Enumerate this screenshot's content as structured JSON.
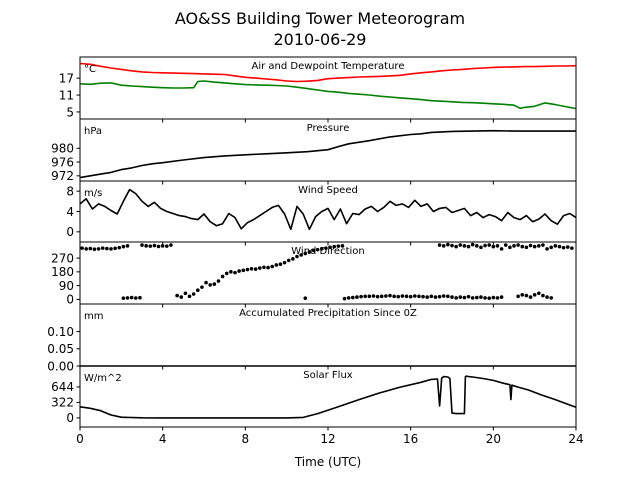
{
  "title": "AO&SS Building Tower Meteorogram",
  "subtitle": "2010-06-29",
  "colors": {
    "temperature": "#ff0000",
    "dewpoint": "#008000",
    "line": "#000000"
  },
  "chart_data": [
    {
      "type": "line",
      "title": "Air and Dewpoint Temperature",
      "unit_label": "°C",
      "xlim": [
        0,
        24
      ],
      "ylim": [
        2.5,
        24.5
      ],
      "yticks": [
        5,
        11,
        17
      ],
      "series": [
        {
          "x": [
            0,
            0.5,
            1,
            1.5,
            2,
            2.5,
            3,
            3.5,
            4,
            4.5,
            5,
            5.5,
            6,
            6.5,
            7,
            7.5,
            8,
            8.5,
            9,
            9.5,
            10,
            10.5,
            11,
            11.5,
            12,
            12.5,
            13,
            13.5,
            14,
            14.5,
            15,
            15.5,
            16,
            16.5,
            17,
            17.5,
            18,
            18.5,
            19,
            19.5,
            20,
            20.5,
            21,
            21.5,
            22,
            22.5,
            23,
            23.5,
            24
          ],
          "values": [
            22.2,
            21.9,
            21.2,
            20.6,
            20.1,
            19.6,
            19.2,
            19.0,
            18.9,
            18.8,
            18.7,
            18.6,
            18.5,
            18.4,
            18.3,
            17.8,
            17.3,
            17.0,
            16.7,
            16.4,
            16.0,
            15.8,
            15.9,
            16.2,
            16.8,
            17.0,
            17.2,
            17.4,
            17.5,
            17.6,
            17.8,
            18.0,
            18.5,
            18.9,
            19.2,
            19.6,
            19.9,
            20.1,
            20.4,
            20.6,
            20.8,
            20.9,
            21.0,
            21.1,
            21.1,
            21.2,
            21.3,
            21.3,
            21.4
          ]
        },
        {
          "x": [
            0,
            0.5,
            1,
            1.5,
            2,
            2.5,
            3,
            3.5,
            4,
            4.5,
            5,
            5.5,
            5.7,
            6,
            6.5,
            7,
            7.5,
            8,
            8.5,
            9,
            9.5,
            10,
            10.5,
            11,
            11.5,
            12,
            12.5,
            13,
            13.5,
            14,
            14.5,
            15,
            15.5,
            16,
            16.5,
            17,
            17.5,
            18,
            18.5,
            19,
            19.5,
            20,
            20.5,
            21,
            21.3,
            21.5,
            22,
            22.5,
            23,
            23.5,
            24
          ],
          "values": [
            15.0,
            14.8,
            15.2,
            15.3,
            14.5,
            14.2,
            14.0,
            13.8,
            13.6,
            13.5,
            13.5,
            13.6,
            15.8,
            16.0,
            15.6,
            15.3,
            15.0,
            14.7,
            14.6,
            14.5,
            14.4,
            14.2,
            13.8,
            13.3,
            12.8,
            12.3,
            12.0,
            11.6,
            11.3,
            11.0,
            10.6,
            10.3,
            10.0,
            9.7,
            9.4,
            9.0,
            8.8,
            8.6,
            8.4,
            8.3,
            8.1,
            7.9,
            7.7,
            7.4,
            6.3,
            6.6,
            7.0,
            8.2,
            7.6,
            6.9,
            6.2
          ]
        }
      ]
    },
    {
      "type": "line",
      "title": "Pressure",
      "unit_label": "hPa",
      "xlim": [
        0,
        24
      ],
      "ylim": [
        970.5,
        988.5
      ],
      "yticks": [
        972,
        976,
        980
      ],
      "series": [
        {
          "x": [
            0,
            0.5,
            1,
            1.5,
            2,
            2.5,
            3,
            3.5,
            4,
            5,
            6,
            7,
            8,
            9,
            10,
            11,
            12,
            12.5,
            13,
            14,
            15,
            16,
            16.5,
            17,
            18,
            19,
            20,
            21,
            22,
            23,
            24
          ],
          "values": [
            971.5,
            972.0,
            972.5,
            973.0,
            973.8,
            974.3,
            975.0,
            975.5,
            975.8,
            976.6,
            977.3,
            977.8,
            978.1,
            978.4,
            978.7,
            979.0,
            979.6,
            980.5,
            981.3,
            982.2,
            983.3,
            984.0,
            984.2,
            984.6,
            984.9,
            985.0,
            985.1,
            985.0,
            985.0,
            985.0,
            985.0
          ]
        }
      ]
    },
    {
      "type": "line",
      "title": "Wind Speed",
      "unit_label": "m/s",
      "xlim": [
        0,
        24
      ],
      "ylim": [
        -2,
        10
      ],
      "yticks": [
        0,
        4,
        8
      ],
      "series": [
        {
          "x": [
            0,
            0.3,
            0.6,
            0.9,
            1.2,
            1.5,
            1.8,
            2.1,
            2.4,
            2.7,
            3.0,
            3.3,
            3.6,
            3.9,
            4.2,
            4.5,
            4.8,
            5.1,
            5.4,
            5.7,
            6.0,
            6.3,
            6.6,
            6.9,
            7.2,
            7.5,
            7.8,
            8.1,
            8.4,
            8.7,
            9.0,
            9.3,
            9.6,
            9.9,
            10.2,
            10.5,
            10.8,
            11.1,
            11.4,
            11.7,
            12.0,
            12.3,
            12.6,
            12.9,
            13.2,
            13.5,
            13.8,
            14.1,
            14.4,
            14.7,
            15.0,
            15.3,
            15.6,
            15.9,
            16.2,
            16.5,
            16.8,
            17.1,
            17.4,
            17.7,
            18.0,
            18.3,
            18.6,
            18.9,
            19.2,
            19.5,
            19.8,
            20.1,
            20.4,
            20.7,
            21.0,
            21.3,
            21.6,
            21.9,
            22.2,
            22.5,
            22.8,
            23.1,
            23.4,
            23.7,
            24.0
          ],
          "values": [
            5.5,
            6.5,
            4.5,
            5.5,
            5.0,
            4.2,
            3.5,
            6.0,
            8.3,
            7.5,
            6.0,
            5.0,
            5.8,
            4.6,
            4.0,
            3.6,
            3.2,
            3.0,
            2.6,
            2.4,
            3.5,
            2.0,
            1.2,
            1.6,
            3.6,
            2.8,
            0.6,
            1.8,
            2.4,
            3.2,
            4.0,
            4.8,
            5.2,
            3.5,
            0.5,
            5.0,
            3.5,
            0.5,
            3.0,
            4.0,
            4.6,
            2.4,
            4.5,
            1.6,
            3.6,
            3.4,
            4.5,
            5.0,
            4.0,
            4.8,
            6.0,
            5.2,
            5.5,
            4.8,
            6.2,
            5.0,
            5.5,
            4.0,
            4.6,
            4.8,
            3.8,
            4.2,
            4.6,
            3.2,
            3.8,
            2.8,
            3.4,
            3.0,
            2.2,
            3.8,
            2.8,
            2.4,
            3.2,
            2.0,
            2.5,
            3.5,
            2.2,
            1.5,
            3.2,
            3.6,
            2.8
          ]
        }
      ]
    },
    {
      "type": "scatter",
      "title": "Wind Direction",
      "xlim": [
        0,
        24
      ],
      "ylim": [
        -30,
        375
      ],
      "yticks": [
        0,
        90,
        180,
        270
      ],
      "series": [
        {
          "x": [
            0.1,
            0.3,
            0.5,
            0.7,
            0.9,
            1.1,
            1.3,
            1.5,
            1.7,
            1.9,
            2.1,
            2.3,
            3.0,
            3.2,
            3.4,
            3.6,
            3.8,
            4.0,
            4.2,
            4.4,
            2.1,
            2.3,
            2.5,
            2.7,
            2.9,
            4.7,
            4.9,
            5.1,
            5.3,
            5.5,
            5.7,
            5.9,
            6.1,
            6.3,
            6.5,
            6.7,
            6.9,
            7.1,
            7.3,
            7.5,
            7.7,
            7.9,
            8.1,
            8.3,
            8.5,
            8.7,
            8.9,
            9.1,
            9.3,
            9.5,
            9.7,
            9.9,
            10.1,
            10.3,
            10.5,
            10.7,
            10.9,
            11.1,
            11.3,
            11.5,
            11.7,
            11.9,
            12.1,
            12.3,
            12.5,
            12.7,
            10.9,
            12.8,
            13.0,
            13.2,
            13.4,
            13.6,
            13.8,
            14.0,
            14.2,
            14.4,
            14.6,
            14.8,
            15.0,
            15.2,
            15.4,
            15.6,
            15.8,
            16.0,
            16.2,
            16.4,
            16.6,
            16.8,
            17.0,
            17.2,
            17.4,
            17.6,
            17.8,
            18.0,
            18.2,
            18.4,
            18.6,
            18.8,
            19.0,
            19.2,
            19.4,
            19.6,
            19.8,
            20.0,
            20.2,
            20.4,
            21.2,
            21.4,
            21.6,
            21.8,
            22.0,
            22.2,
            22.4,
            22.6,
            22.8,
            17.4,
            17.6,
            17.8,
            18.0,
            18.2,
            18.4,
            18.6,
            18.8,
            19.0,
            19.2,
            19.4,
            19.6,
            19.8,
            20.0,
            20.2,
            20.4,
            20.6,
            20.8,
            21.0,
            21.2,
            21.4,
            21.6,
            21.8,
            22.0,
            22.2,
            22.4,
            22.6,
            22.8,
            23.0,
            23.2,
            23.4,
            23.6,
            23.8
          ],
          "values": [
            335,
            330,
            332,
            328,
            330,
            335,
            332,
            330,
            334,
            338,
            345,
            350,
            355,
            350,
            348,
            352,
            346,
            350,
            348,
            355,
            8,
            10,
            12,
            9,
            11,
            25,
            15,
            40,
            20,
            35,
            60,
            80,
            110,
            95,
            100,
            120,
            150,
            170,
            180,
            175,
            185,
            190,
            195,
            200,
            198,
            205,
            210,
            208,
            215,
            225,
            230,
            240,
            255,
            265,
            280,
            290,
            300,
            310,
            320,
            325,
            330,
            335,
            340,
            345,
            348,
            350,
            8,
            5,
            10,
            12,
            15,
            18,
            20,
            20,
            22,
            18,
            20,
            22,
            25,
            20,
            18,
            22,
            20,
            18,
            22,
            20,
            18,
            15,
            20,
            15,
            18,
            22,
            20,
            15,
            10,
            15,
            12,
            18,
            10,
            12,
            15,
            10,
            8,
            12,
            10,
            15,
            20,
            30,
            25,
            15,
            30,
            40,
            25,
            15,
            10,
            355,
            350,
            358,
            352,
            345,
            355,
            350,
            345,
            358,
            350,
            340,
            352,
            355,
            345,
            350,
            330,
            355,
            340,
            350,
            355,
            345,
            340,
            352,
            345,
            350,
            355,
            330,
            340,
            350,
            345,
            338,
            342,
            335
          ]
        }
      ]
    },
    {
      "type": "line",
      "title": "Accumulated Precipitation Since 0Z",
      "unit_label": "mm",
      "xlim": [
        0,
        24
      ],
      "ylim": [
        0,
        0.18
      ],
      "yticks": [
        0.0,
        0.05,
        0.1
      ],
      "ytick_labels": [
        "0.00",
        "0.05",
        "0.10"
      ],
      "series": [
        {
          "x": [
            0,
            24
          ],
          "values": [
            0,
            0
          ]
        }
      ]
    },
    {
      "type": "line",
      "title": "Solar Flux",
      "unit_label": "W/m^2",
      "xlim": [
        0,
        24
      ],
      "ylim": [
        -190,
        1080
      ],
      "yticks": [
        0,
        322,
        644
      ],
      "xticks": [
        0,
        4,
        8,
        12,
        16,
        20,
        24
      ],
      "xlabel": "Time (UTC)",
      "series": [
        {
          "x": [
            0,
            0.5,
            1,
            1.5,
            2,
            3,
            4,
            6,
            8,
            10,
            10.8,
            11.5,
            12.5,
            13.5,
            14.5,
            15.5,
            16.5,
            17.0,
            17.3,
            17.4,
            17.5,
            17.6,
            17.8,
            17.9,
            18.0,
            18.2,
            18.4,
            18.6,
            18.65,
            18.7,
            18.8,
            19.0,
            19.5,
            20.0,
            20.5,
            20.8,
            20.85,
            20.9,
            21.2,
            21.7,
            22.3,
            23,
            23.5,
            24
          ],
          "values": [
            230,
            200,
            150,
            60,
            15,
            2,
            0,
            0,
            0,
            0,
            10,
            90,
            230,
            380,
            520,
            640,
            740,
            800,
            810,
            250,
            830,
            860,
            850,
            820,
            100,
            90,
            90,
            90,
            860,
            870,
            860,
            850,
            820,
            780,
            720,
            690,
            380,
            680,
            640,
            580,
            480,
            380,
            300,
            220
          ]
        }
      ]
    }
  ]
}
